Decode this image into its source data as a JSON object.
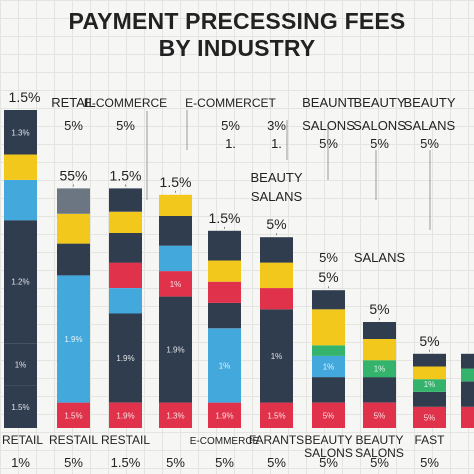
{
  "title_lines": [
    "PAYMENT PRECESSING FEES",
    "BY INDUSTRY"
  ],
  "colors": {
    "navy": "#2f3d4f",
    "yellow": "#f2c81c",
    "sky": "#43a8dc",
    "red": "#e0324a",
    "green": "#33b36b",
    "grey": "#6c7682"
  },
  "chart_data": {
    "type": "bar",
    "title": "PAYMENT PRECESSING FEES BY INDUSTRY",
    "xlabel": "",
    "ylabel": "",
    "categories": [
      "RETAIL",
      "RESTAIL",
      "RESTAIL",
      "",
      "E-COMMERCE",
      "FARANTS",
      "BEAUTY SALONS",
      "BEAUTY SALONS",
      "FAST",
      ""
    ],
    "bottom_values": [
      "1%",
      "5%",
      "1.5%",
      "5%",
      "5%",
      "5%",
      "5%",
      "5%",
      "5%",
      ""
    ],
    "top_values": [
      "1.5%",
      "55%",
      "1.5%",
      "1.5%",
      "1.5%",
      "5%",
      "5%",
      "5%",
      "5%",
      "5"
    ],
    "bars": [
      {
        "category": "RETAIL",
        "total": 1.5,
        "segments": [
          {
            "color": "navy",
            "value": 0.2,
            "label": "1.5%"
          },
          {
            "color": "navy",
            "value": 0.2,
            "label": "1%"
          },
          {
            "color": "navy",
            "value": 0.58,
            "label": "1.2%"
          },
          {
            "color": "sky",
            "value": 0.19,
            "label": ""
          },
          {
            "color": "yellow",
            "value": 0.12,
            "label": ""
          },
          {
            "color": "navy",
            "value": 0.21,
            "label": "1.3%"
          }
        ]
      },
      {
        "category": "RESTAIL",
        "total": 1.27,
        "segments": [
          {
            "color": "red",
            "value": 0.12,
            "label": "1.5%"
          },
          {
            "color": "sky",
            "value": 0.6,
            "label": "1.9%"
          },
          {
            "color": "navy",
            "value": 0.15,
            "label": ""
          },
          {
            "color": "yellow",
            "value": 0.14,
            "label": ""
          },
          {
            "color": "grey",
            "value": 0.12,
            "label": ""
          }
        ]
      },
      {
        "category": "RESTAIL",
        "total": 1.07,
        "segments": [
          {
            "color": "red",
            "value": 0.12,
            "label": "1.9%"
          },
          {
            "color": "navy",
            "value": 0.42,
            "label": "1.9%"
          },
          {
            "color": "sky",
            "value": 0.12,
            "label": ""
          },
          {
            "color": "red",
            "value": 0.12,
            "label": ""
          },
          {
            "color": "navy",
            "value": 0.14,
            "label": ""
          },
          {
            "color": "yellow",
            "value": 0.1,
            "label": ""
          },
          {
            "color": "navy",
            "value": 0.11,
            "label": ""
          }
        ]
      },
      {
        "category": "",
        "total": 1.1,
        "segments": [
          {
            "color": "red",
            "value": 0.12,
            "label": "1.3%"
          },
          {
            "color": "navy",
            "value": 0.5,
            "label": "1.9%"
          },
          {
            "color": "red",
            "value": 0.12,
            "label": "1%"
          },
          {
            "color": "sky",
            "value": 0.12,
            "label": ""
          },
          {
            "color": "navy",
            "value": 0.14,
            "label": ""
          },
          {
            "color": "yellow",
            "value": 0.1,
            "label": ""
          }
        ]
      },
      {
        "category": "E-COMMERCE",
        "total": 0.93,
        "segments": [
          {
            "color": "red",
            "value": 0.12,
            "label": "1.9%"
          },
          {
            "color": "sky",
            "value": 0.35,
            "label": "1%"
          },
          {
            "color": "navy",
            "value": 0.12,
            "label": ""
          },
          {
            "color": "red",
            "value": 0.1,
            "label": ""
          },
          {
            "color": "yellow",
            "value": 0.1,
            "label": ""
          },
          {
            "color": "navy",
            "value": 0.14,
            "label": ""
          }
        ]
      },
      {
        "category": "FARANTS",
        "total": 0.9,
        "segments": [
          {
            "color": "red",
            "value": 0.12,
            "label": "1.5%"
          },
          {
            "color": "navy",
            "value": 0.44,
            "label": "1%"
          },
          {
            "color": "red",
            "value": 0.1,
            "label": ""
          },
          {
            "color": "yellow",
            "value": 0.12,
            "label": ""
          },
          {
            "color": "navy",
            "value": 0.12,
            "label": ""
          }
        ]
      },
      {
        "category": "BEAUTY SALONS",
        "total": 0.65,
        "segments": [
          {
            "color": "red",
            "value": 0.12,
            "label": "5%"
          },
          {
            "color": "navy",
            "value": 0.12,
            "label": ""
          },
          {
            "color": "sky",
            "value": 0.1,
            "label": "1%"
          },
          {
            "color": "green",
            "value": 0.05,
            "label": ""
          },
          {
            "color": "yellow",
            "value": 0.17,
            "label": ""
          },
          {
            "color": "navy",
            "value": 0.09,
            "label": ""
          }
        ]
      },
      {
        "category": "BEAUTY SALONS",
        "total": 0.5,
        "segments": [
          {
            "color": "red",
            "value": 0.12,
            "label": "5%"
          },
          {
            "color": "navy",
            "value": 0.12,
            "label": ""
          },
          {
            "color": "green",
            "value": 0.08,
            "label": "1%"
          },
          {
            "color": "yellow",
            "value": 0.1,
            "label": ""
          },
          {
            "color": "navy",
            "value": 0.08,
            "label": ""
          }
        ]
      },
      {
        "category": "FAST",
        "total": 0.35,
        "segments": [
          {
            "color": "red",
            "value": 0.1,
            "label": "5%"
          },
          {
            "color": "navy",
            "value": 0.07,
            "label": ""
          },
          {
            "color": "green",
            "value": 0.06,
            "label": "1%"
          },
          {
            "color": "yellow",
            "value": 0.06,
            "label": ""
          },
          {
            "color": "navy",
            "value": 0.06,
            "label": ""
          }
        ]
      },
      {
        "category": "",
        "total": 0.35,
        "segments": [
          {
            "color": "red",
            "value": 0.1,
            "label": ""
          },
          {
            "color": "navy",
            "value": 0.12,
            "label": ""
          },
          {
            "color": "green",
            "value": 0.06,
            "label": ""
          },
          {
            "color": "navy",
            "value": 0.07,
            "label": ""
          }
        ]
      }
    ],
    "floating_labels": [
      {
        "text": "RETAIL",
        "bar": 1,
        "row": 0
      },
      {
        "text": "E-COMMERCE",
        "bar": 2,
        "row": 0
      },
      {
        "text": "E-COMMERCET",
        "bar": 4,
        "row": 0
      },
      {
        "text": "5%",
        "bar": 1,
        "row": 1
      },
      {
        "text": "5%",
        "bar": 2,
        "row": 1
      },
      {
        "text": "5%",
        "bar": 4,
        "row": 1
      },
      {
        "text": "3%",
        "bar": 5,
        "row": 1
      },
      {
        "text": "1.",
        "bar": 4,
        "row": 2
      },
      {
        "text": "1.",
        "bar": 5,
        "row": 2
      },
      {
        "text": "BEAUNT",
        "bar": 6,
        "row": 0
      },
      {
        "text": "BEAUTY",
        "bar": 7,
        "row": 0
      },
      {
        "text": "BEAUTY",
        "bar": 8,
        "row": 0
      },
      {
        "text": "SALONS",
        "bar": 6,
        "row": 1
      },
      {
        "text": "SALONS",
        "bar": 7,
        "row": 1
      },
      {
        "text": "SALANS",
        "bar": 8,
        "row": 1
      },
      {
        "text": "5%",
        "bar": 6,
        "row": 2
      },
      {
        "text": "5%",
        "bar": 7,
        "row": 2
      },
      {
        "text": "5%",
        "bar": 8,
        "row": 2
      },
      {
        "text": "BEAUTY",
        "bar": 5,
        "row": 3
      },
      {
        "text": "SALANS",
        "bar": 5,
        "row": 4
      },
      {
        "text": "5%",
        "bar": 6,
        "row": 5
      },
      {
        "text": "SALANS",
        "bar": 7,
        "row": 5
      }
    ],
    "ylim": [
      0,
      1.6
    ],
    "grid": true,
    "legend": "none"
  }
}
